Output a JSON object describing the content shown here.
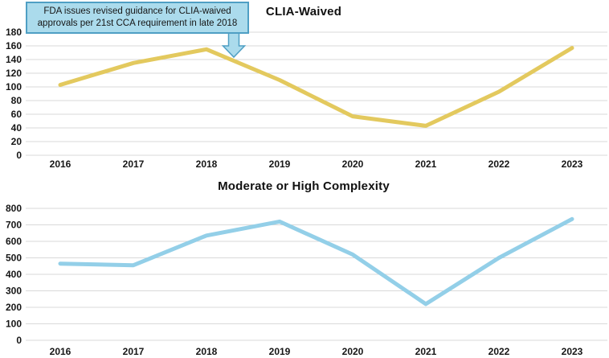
{
  "figure": {
    "background": "#ffffff",
    "grid_color": "#d9d9d9",
    "tick_color": "#161616"
  },
  "callout": {
    "text": "FDA issues revised guidance for CLIA-waived approvals per 21st CCA requirement in late 2018",
    "fill": "#abdbec",
    "border": "#4f9fc4",
    "arrow_icon": "block-down-arrow",
    "points_to_x": "between 2018 and 2019"
  },
  "chart_data": [
    {
      "type": "line",
      "title": "CLIA-Waived",
      "categories": [
        "2016",
        "2017",
        "2018",
        "2019",
        "2020",
        "2021",
        "2022",
        "2023"
      ],
      "series": [
        {
          "name": "CLIA-Waived approvals",
          "values": [
            103,
            135,
            155,
            110,
            57,
            43,
            93,
            157
          ],
          "color": "#e3c95e"
        }
      ],
      "ylim": [
        0,
        180
      ],
      "yticks": [
        0,
        20,
        40,
        60,
        80,
        100,
        120,
        140,
        160,
        180
      ],
      "grid": true,
      "legend": "none",
      "xlabel": "",
      "ylabel": ""
    },
    {
      "type": "line",
      "title": "Moderate or High Complexity",
      "categories": [
        "2016",
        "2017",
        "2018",
        "2019",
        "2020",
        "2021",
        "2022",
        "2023"
      ],
      "series": [
        {
          "name": "Moderate or High Complexity approvals",
          "values": [
            465,
            455,
            635,
            720,
            520,
            220,
            500,
            735
          ],
          "color": "#93cfe8"
        }
      ],
      "ylim": [
        0,
        800
      ],
      "yticks": [
        0,
        100,
        200,
        300,
        400,
        500,
        600,
        700,
        800
      ],
      "grid": true,
      "legend": "none",
      "xlabel": "",
      "ylabel": ""
    }
  ]
}
